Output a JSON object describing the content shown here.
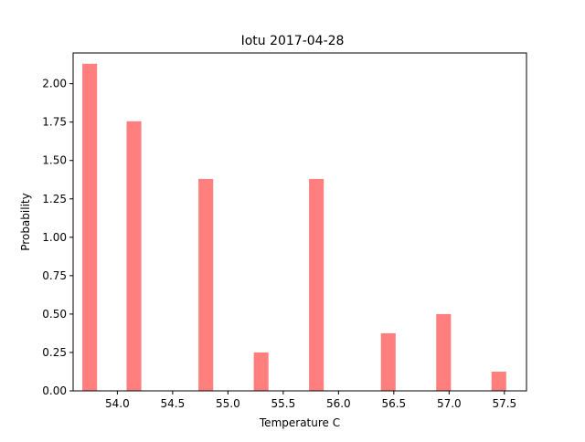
{
  "chart_data": {
    "type": "bar",
    "title": "Iotu 2017-04-28",
    "xlabel": "Temperature C",
    "ylabel": "Probability",
    "xlim": [
      53.6,
      57.7
    ],
    "ylim": [
      0,
      2.2
    ],
    "bar_width": 0.133,
    "bar_color": "#ff7f7f",
    "x": [
      53.75,
      54.15,
      54.8,
      55.3,
      55.8,
      56.45,
      56.95,
      57.45
    ],
    "values": [
      2.13,
      1.755,
      1.38,
      0.25,
      1.38,
      0.375,
      0.5,
      0.125
    ],
    "xticks": [
      54.0,
      54.5,
      55.0,
      55.5,
      56.0,
      56.5,
      57.0,
      57.5
    ],
    "xtick_labels": [
      "54.0",
      "54.5",
      "55.0",
      "55.5",
      "56.0",
      "56.5",
      "57.0",
      "57.5"
    ],
    "yticks": [
      0.0,
      0.25,
      0.5,
      0.75,
      1.0,
      1.25,
      1.5,
      1.75,
      2.0
    ],
    "ytick_labels": [
      "0.00",
      "0.25",
      "0.50",
      "0.75",
      "1.00",
      "1.25",
      "1.50",
      "1.75",
      "2.00"
    ],
    "grid": false,
    "legend": "none"
  }
}
